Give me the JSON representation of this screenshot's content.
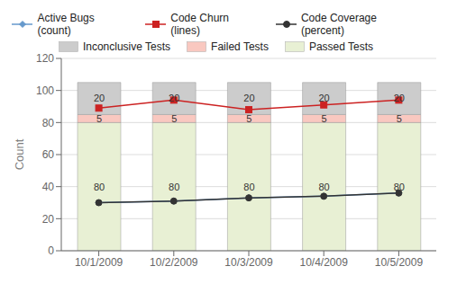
{
  "chart_data": {
    "type": "bar",
    "categories": [
      "10/1/2009",
      "10/2/2009",
      "10/3/2009",
      "10/4/2009",
      "10/5/2009"
    ],
    "stacked": true,
    "ylabel": "Count",
    "ylim": [
      0,
      120
    ],
    "yticks": [
      0,
      20,
      40,
      60,
      80,
      100,
      120
    ],
    "grid": true,
    "legend": "top",
    "series": [
      {
        "name": "Passed Tests",
        "type": "bar",
        "color": "#e8f0d4",
        "values": [
          80,
          80,
          80,
          80,
          80
        ],
        "data_labels": true
      },
      {
        "name": "Failed Tests",
        "type": "bar",
        "color": "#f9c8c0",
        "values": [
          5,
          5,
          5,
          5,
          5
        ],
        "data_labels": true
      },
      {
        "name": "Inconclusive Tests",
        "type": "bar",
        "color": "#cccccc",
        "values": [
          20,
          20,
          20,
          20,
          20
        ],
        "data_labels": true
      },
      {
        "name": "Active Bugs (count)",
        "type": "line",
        "color": "#6699cc",
        "marker": "diamond",
        "values": [
          30,
          31,
          33,
          34,
          36
        ]
      },
      {
        "name": "Code Churn (lines)",
        "type": "line",
        "color": "#cc2222",
        "marker": "square",
        "values": [
          89,
          94,
          88,
          91,
          94
        ]
      },
      {
        "name": "Code Coverage (percent)",
        "type": "line",
        "color": "#333333",
        "marker": "circle",
        "values": [
          30,
          31,
          33,
          34,
          36
        ]
      }
    ]
  }
}
